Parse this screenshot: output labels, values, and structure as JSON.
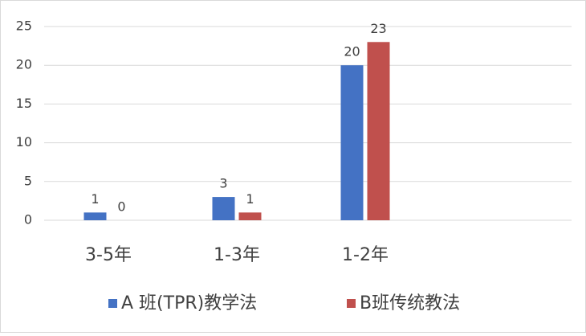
{
  "chart_data": {
    "type": "bar",
    "categories": [
      "3-5年",
      "1-3年",
      "1-2年"
    ],
    "series": [
      {
        "name": "A 班(TPR)教学法",
        "color": "#4472c4",
        "values": [
          1,
          3,
          20
        ]
      },
      {
        "name": "B班传统教法",
        "color": "#c0504d",
        "values": [
          0,
          1,
          23
        ]
      }
    ],
    "ylim": [
      0,
      25
    ],
    "yticks": [
      0,
      5,
      10,
      15,
      20,
      25
    ],
    "grid": true,
    "legend": "bottom"
  }
}
